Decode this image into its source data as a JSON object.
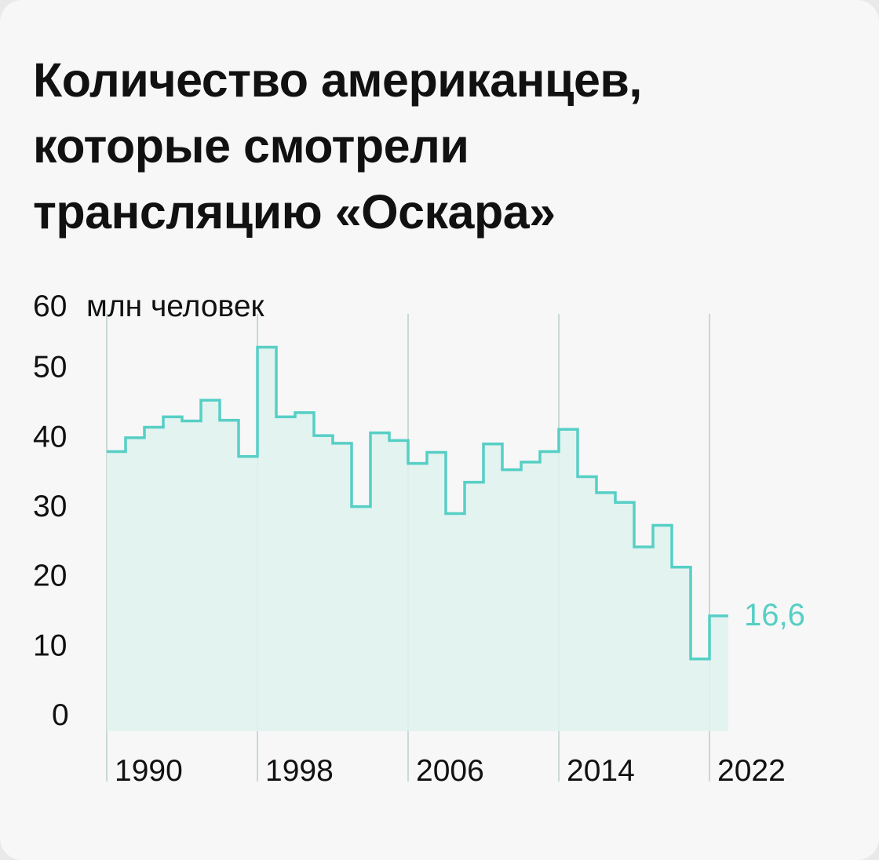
{
  "title_lines": [
    "Количество американцев,",
    "которые смотрели",
    "трансляцию «Оскара»"
  ],
  "colors": {
    "line": "#56cfc5",
    "fill": "#dff2ef",
    "gridline": "#c9d9d6",
    "text": "#111111"
  },
  "chart_data": {
    "type": "line",
    "step": true,
    "title": "Количество американцев, которые смотрели трансляцию «Оскара»",
    "unit_label": "млн человек",
    "ylim": [
      0,
      60
    ],
    "yticks": [
      0,
      10,
      20,
      30,
      40,
      50,
      60
    ],
    "xlim": [
      1990,
      2023
    ],
    "xticks": [
      1990,
      1998,
      2006,
      2014,
      2022
    ],
    "x": [
      1990,
      1991,
      1992,
      1993,
      1994,
      1995,
      1996,
      1997,
      1998,
      1999,
      2000,
      2001,
      2002,
      2003,
      2004,
      2005,
      2006,
      2007,
      2008,
      2009,
      2010,
      2011,
      2012,
      2013,
      2014,
      2015,
      2016,
      2017,
      2018,
      2019,
      2020,
      2021,
      2022
    ],
    "values": [
      40.2,
      42.2,
      43.7,
      45.2,
      44.6,
      47.6,
      44.7,
      39.5,
      55.2,
      45.2,
      45.8,
      42.5,
      41.4,
      32.3,
      42.9,
      41.8,
      38.5,
      40.1,
      31.3,
      35.8,
      41.3,
      37.6,
      38.7,
      40.2,
      43.4,
      36.6,
      34.3,
      32.9,
      26.5,
      29.6,
      23.6,
      10.4,
      16.6
    ],
    "last_value_label": "16,6"
  }
}
